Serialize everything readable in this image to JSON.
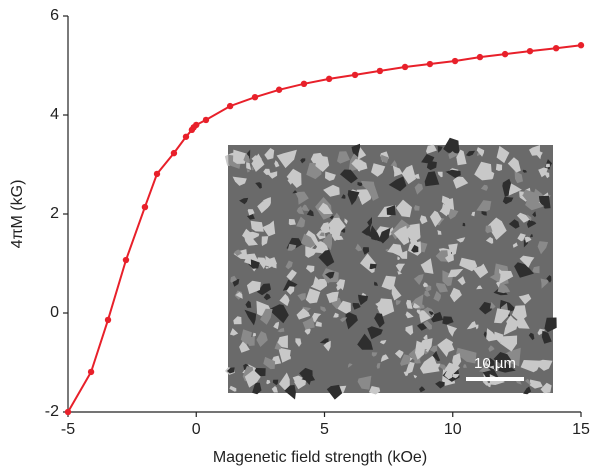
{
  "chart_data": {
    "type": "line",
    "x_label": "Magenetic field strength (kOe)",
    "y_label": "4πM (kG)",
    "inset_scale_label": "10 µm",
    "series": [
      {
        "color": "#e8202a",
        "x": [
          -5,
          -4.1,
          -3.44,
          -2.74,
          -2.0,
          -1.53,
          -0.87,
          -0.4,
          -0.17,
          -0.1,
          0,
          0.38,
          1.32,
          2.29,
          3.23,
          4.2,
          5.18,
          6.19,
          7.16,
          8.14,
          9.11,
          10.09,
          11.06,
          12.04,
          13.01,
          14.03,
          15.0
        ],
        "values": [
          -2,
          -1.19,
          -0.14,
          1.07,
          2.14,
          2.81,
          3.23,
          3.56,
          3.7,
          3.75,
          3.8,
          3.9,
          4.18,
          4.36,
          4.51,
          4.63,
          4.73,
          4.81,
          4.89,
          4.97,
          5.03,
          5.09,
          5.17,
          5.23,
          5.29,
          5.35,
          5.41
        ]
      }
    ],
    "xlim": [
      -5,
      15
    ],
    "xticks": [
      -5,
      0,
      5,
      10,
      15
    ],
    "ylim": [
      -2,
      6
    ],
    "yticks": [
      -2,
      0,
      2,
      4,
      6
    ]
  }
}
